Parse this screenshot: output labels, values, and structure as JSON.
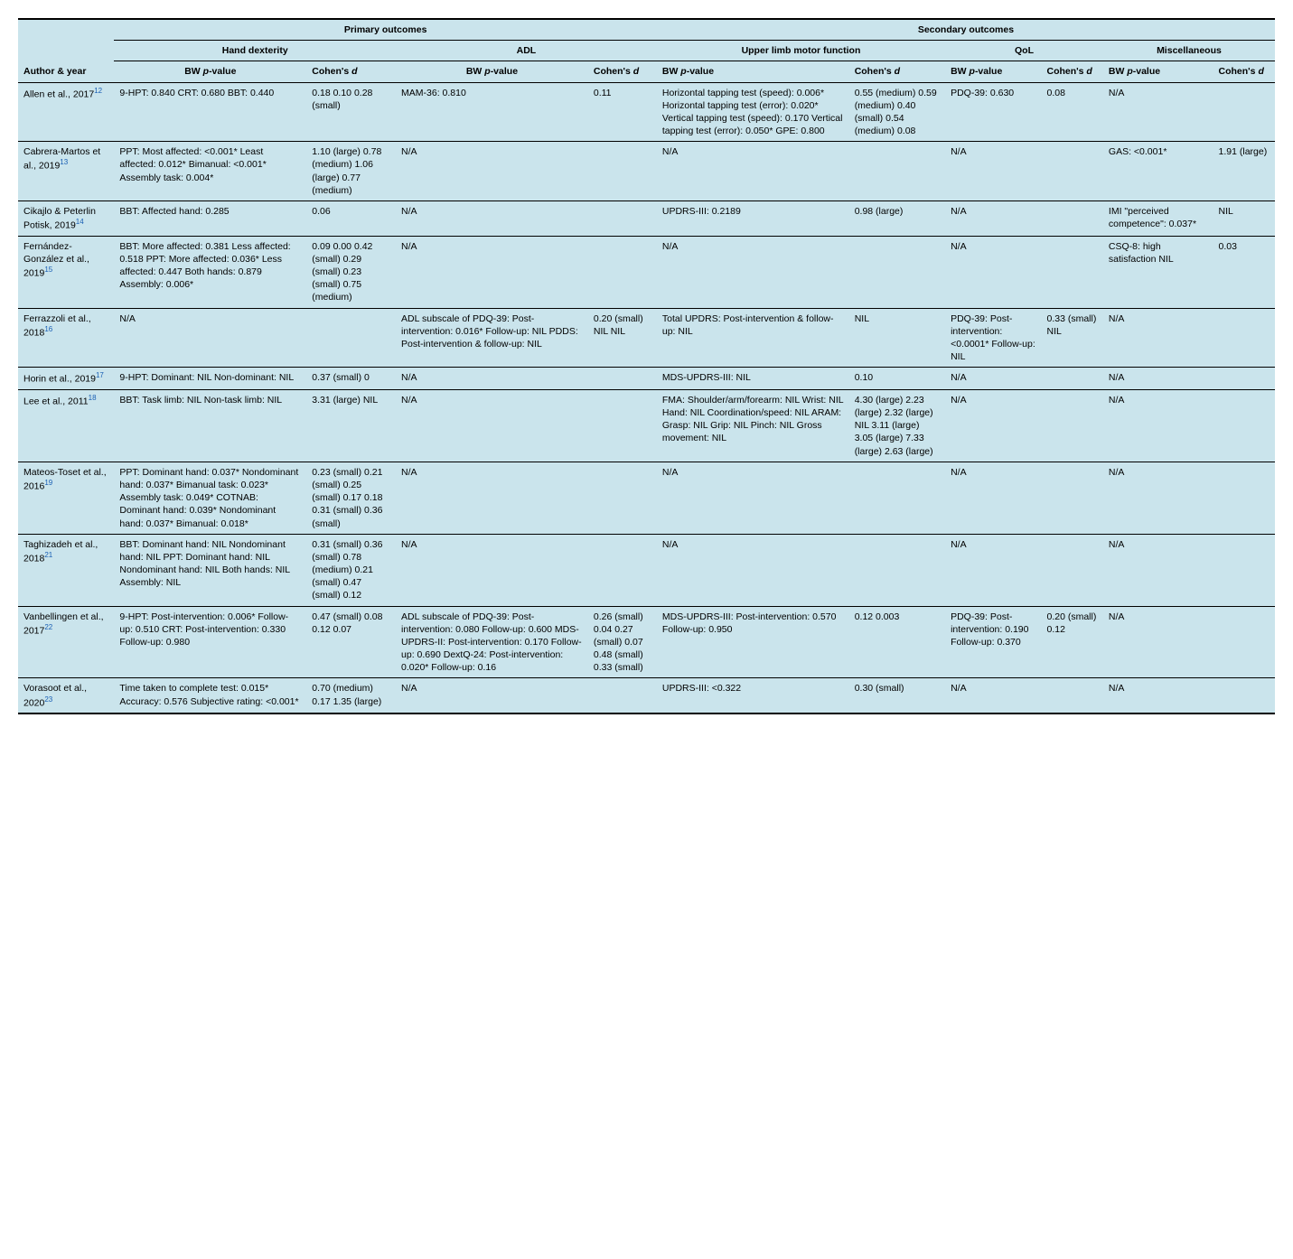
{
  "colors": {
    "background": "#cae4ec",
    "border": "#000000",
    "text": "#000000",
    "link": "#1a5fb4"
  },
  "header": {
    "author": "Author & year",
    "primary": "Primary outcomes",
    "secondary": "Secondary outcomes",
    "hd": "Hand dexterity",
    "adl": "ADL",
    "ul": "Upper limb motor function",
    "qol": "QoL",
    "misc": "Miscellaneous",
    "bw": "BW p-value",
    "bw_italic": "BW p-value",
    "cohen": "Cohen's d"
  },
  "rows": [
    {
      "author": "Allen et al., 2017",
      "ref": "12",
      "hd_p": "9-HPT: 0.840 CRT: 0.680 BBT: 0.440",
      "hd_d": "0.18 0.10 0.28 (small)",
      "adl_p": "MAM-36: 0.810",
      "adl_d": "0.11",
      "ul_p": "Horizontal tapping test (speed): 0.006* Horizontal tapping test (error): 0.020* Vertical tapping test (speed): 0.170 Vertical tapping test (error): 0.050* GPE: 0.800",
      "ul_d": "0.55 (medium) 0.59 (medium) 0.40 (small) 0.54 (medium) 0.08",
      "qol_p": "PDQ-39: 0.630",
      "qol_d": "0.08",
      "misc_p": "N/A",
      "misc_d": ""
    },
    {
      "author": "Cabrera-Martos et al., 2019",
      "ref": "13",
      "hd_p": "PPT: Most affected: <0.001* Least affected: 0.012* Bimanual: <0.001* Assembly task: 0.004*",
      "hd_d": "1.10 (large) 0.78 (medium) 1.06 (large) 0.77 (medium)",
      "adl_p": "N/A",
      "adl_d": "",
      "ul_p": "N/A",
      "ul_d": "",
      "qol_p": "N/A",
      "qol_d": "",
      "misc_p": "GAS: <0.001*",
      "misc_d": "1.91 (large)"
    },
    {
      "author": "Cikajlo & Peterlin Potisk, 2019",
      "ref": "14",
      "hd_p": "BBT: Affected hand: 0.285",
      "hd_d": "0.06",
      "adl_p": "N/A",
      "adl_d": "",
      "ul_p": "UPDRS-III: 0.2189",
      "ul_d": "0.98 (large)",
      "qol_p": "N/A",
      "qol_d": "",
      "misc_p": "IMI \"perceived competence\": 0.037*",
      "misc_d": "NIL"
    },
    {
      "author": "Fernández-González et al., 2019",
      "ref": "15",
      "hd_p": "BBT: More affected: 0.381 Less affected: 0.518 PPT: More affected: 0.036* Less affected: 0.447 Both hands: 0.879 Assembly: 0.006*",
      "hd_d": "0.09 0.00 0.42 (small) 0.29 (small) 0.23 (small) 0.75 (medium)",
      "adl_p": "N/A",
      "adl_d": "",
      "ul_p": "N/A",
      "ul_d": "",
      "qol_p": "N/A",
      "qol_d": "",
      "misc_p": "CSQ-8: high satisfaction NIL",
      "misc_d": "0.03"
    },
    {
      "author": "Ferrazzoli et al., 2018",
      "ref": "16",
      "hd_p": "N/A",
      "hd_d": "",
      "adl_p": "ADL subscale of PDQ-39: Post-intervention: 0.016* Follow-up: NIL PDDS: Post-intervention & follow-up: NIL",
      "adl_d": "0.20 (small) NIL NIL",
      "ul_p": "Total UPDRS: Post-intervention & follow-up: NIL",
      "ul_d": "NIL",
      "qol_p": "PDQ-39: Post-intervention: <0.0001* Follow-up: NIL",
      "qol_d": "0.33 (small) NIL",
      "misc_p": "N/A",
      "misc_d": ""
    },
    {
      "author": "Horin et al., 2019",
      "ref": "17",
      "hd_p": "9-HPT: Dominant: NIL Non-dominant: NIL",
      "hd_d": "0.37 (small) 0",
      "adl_p": "N/A",
      "adl_d": "",
      "ul_p": "MDS-UPDRS-III: NIL",
      "ul_d": "0.10",
      "qol_p": "N/A",
      "qol_d": "",
      "misc_p": "N/A",
      "misc_d": ""
    },
    {
      "author": "Lee et al., 2011",
      "ref": "18",
      "hd_p": "BBT: Task limb: NIL Non-task limb: NIL",
      "hd_d": "3.31 (large) NIL",
      "adl_p": "N/A",
      "adl_d": "",
      "ul_p": "FMA: Shoulder/arm/forearm: NIL Wrist: NIL Hand: NIL Coordination/speed: NIL ARAM: Grasp: NIL Grip: NIL Pinch: NIL Gross movement: NIL",
      "ul_d": "4.30 (large) 2.23 (large) 2.32 (large) NIL 3.11 (large) 3.05 (large) 7.33 (large) 2.63 (large)",
      "qol_p": "N/A",
      "qol_d": "",
      "misc_p": "N/A",
      "misc_d": ""
    },
    {
      "author": "Mateos-Toset et al., 2016",
      "ref": "19",
      "hd_p": "PPT: Dominant hand: 0.037* Nondominant hand: 0.037* Bimanual task: 0.023* Assembly task: 0.049* COTNAB: Dominant hand: 0.039* Nondominant hand: 0.037* Bimanual: 0.018*",
      "hd_d": "0.23 (small) 0.21 (small) 0.25 (small) 0.17 0.18 0.31 (small) 0.36 (small)",
      "adl_p": "N/A",
      "adl_d": "",
      "ul_p": "N/A",
      "ul_d": "",
      "qol_p": "N/A",
      "qol_d": "",
      "misc_p": "N/A",
      "misc_d": ""
    },
    {
      "author": "Taghizadeh et al., 2018",
      "ref": "21",
      "hd_p": "BBT: Dominant hand: NIL Nondominant hand: NIL PPT: Dominant hand: NIL Nondominant hand: NIL Both hands: NIL Assembly: NIL",
      "hd_d": "0.31 (small) 0.36 (small) 0.78 (medium) 0.21 (small) 0.47 (small) 0.12",
      "adl_p": "N/A",
      "adl_d": "",
      "ul_p": "N/A",
      "ul_d": "",
      "qol_p": "N/A",
      "qol_d": "",
      "misc_p": "N/A",
      "misc_d": ""
    },
    {
      "author": "Vanbellingen et al., 2017",
      "ref": "22",
      "hd_p": "9-HPT: Post-intervention: 0.006* Follow-up: 0.510 CRT: Post-intervention: 0.330 Follow-up: 0.980",
      "hd_d": "0.47 (small) 0.08 0.12 0.07",
      "adl_p": "ADL subscale of PDQ-39: Post-intervention: 0.080 Follow-up: 0.600 MDS-UPDRS-II: Post-intervention: 0.170 Follow-up: 0.690 DextQ-24: Post-intervention: 0.020* Follow-up: 0.16",
      "adl_d": "0.26 (small) 0.04 0.27 (small) 0.07 0.48 (small) 0.33 (small)",
      "ul_p": "MDS-UPDRS-III: Post-intervention: 0.570 Follow-up: 0.950",
      "ul_d": "0.12 0.003",
      "qol_p": "PDQ-39: Post-intervention: 0.190 Follow-up: 0.370",
      "qol_d": "0.20 (small) 0.12",
      "misc_p": "N/A",
      "misc_d": ""
    },
    {
      "author": "Vorasoot et al., 2020",
      "ref": "23",
      "hd_p": "Time taken to complete test: 0.015* Accuracy: 0.576 Subjective rating: <0.001*",
      "hd_d": "0.70 (medium) 0.17 1.35 (large)",
      "adl_p": "N/A",
      "adl_d": "",
      "ul_p": "UPDRS-III: <0.322",
      "ul_d": "0.30 (small)",
      "qol_p": "N/A",
      "qol_d": "",
      "misc_p": "N/A",
      "misc_d": ""
    }
  ]
}
